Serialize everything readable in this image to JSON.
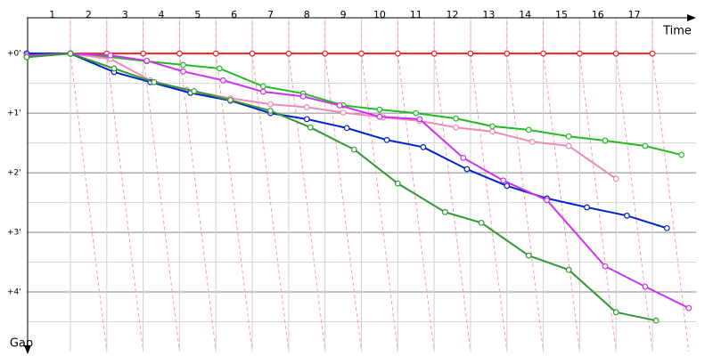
{
  "chart_data": {
    "type": "line",
    "x_label": "Time",
    "y_label": "Gap",
    "xlim": [
      -0.2,
      18.2
    ],
    "ylim": [
      -0.6,
      5.0
    ],
    "xticks": [
      {
        "value": 0.5,
        "label": "1"
      },
      {
        "value": 1.5,
        "label": "2"
      },
      {
        "value": 2.5,
        "label": "3"
      },
      {
        "value": 3.5,
        "label": "4"
      },
      {
        "value": 4.5,
        "label": "5"
      },
      {
        "value": 5.5,
        "label": "6"
      },
      {
        "value": 6.5,
        "label": "7"
      },
      {
        "value": 7.5,
        "label": "8"
      },
      {
        "value": 8.5,
        "label": "9"
      },
      {
        "value": 9.5,
        "label": "10"
      },
      {
        "value": 10.5,
        "label": "11"
      },
      {
        "value": 11.5,
        "label": "12"
      },
      {
        "value": 12.5,
        "label": "13"
      },
      {
        "value": 13.5,
        "label": "14"
      },
      {
        "value": 14.5,
        "label": "15"
      },
      {
        "value": 15.5,
        "label": "16"
      },
      {
        "value": 16.5,
        "label": "17"
      }
    ],
    "yticks": [
      {
        "value": 0,
        "label": "+0'"
      },
      {
        "value": 1,
        "label": "+1'"
      },
      {
        "value": 2,
        "label": "+2'"
      },
      {
        "value": 3,
        "label": "+3'"
      },
      {
        "value": 4,
        "label": "+4'"
      }
    ],
    "grid": true,
    "series": [
      {
        "color": "#ee2222",
        "x": [
          -0.2,
          1,
          2,
          3,
          4,
          5,
          6,
          7,
          8,
          9,
          10,
          11,
          12,
          13,
          14,
          15,
          16,
          17
        ],
        "values": [
          0,
          0,
          0,
          0,
          0,
          0,
          0,
          0,
          0,
          0,
          0,
          0,
          0,
          0,
          0,
          0,
          0,
          0
        ]
      },
      {
        "color": "#22bb22",
        "x": [
          -0.2,
          1,
          2.1,
          3.1,
          4.1,
          5.1,
          6.3,
          7.4,
          8.5,
          9.5,
          10.5,
          11.6,
          12.6,
          13.6,
          14.7,
          15.7,
          16.8,
          17.8
        ],
        "values": [
          0.06,
          0,
          0.06,
          0.13,
          0.19,
          0.25,
          0.55,
          0.67,
          0.87,
          0.94,
          1.0,
          1.09,
          1.22,
          1.28,
          1.39,
          1.46,
          1.55,
          1.7
        ]
      },
      {
        "color": "#f088b8",
        "x": [
          -0.2,
          1,
          2.1,
          3.2,
          4.2,
          5.4,
          6.5,
          7.5,
          8.5,
          9.6,
          10.6,
          11.6,
          12.6,
          13.7,
          14.7,
          16.0
        ],
        "values": [
          0.01,
          0,
          0.09,
          0.45,
          0.61,
          0.75,
          0.85,
          0.9,
          0.99,
          1.07,
          1.13,
          1.24,
          1.31,
          1.48,
          1.55,
          2.1
        ]
      },
      {
        "color": "#0022cc",
        "x": [
          -0.2,
          1,
          2.2,
          3.2,
          4.3,
          5.4,
          6.5,
          7.5,
          8.6,
          9.7,
          10.7,
          11.9,
          13.0,
          14.1,
          15.2,
          16.3,
          17.4
        ],
        "values": [
          0,
          0,
          0.31,
          0.48,
          0.66,
          0.79,
          1.0,
          1.1,
          1.25,
          1.45,
          1.57,
          1.94,
          2.22,
          2.43,
          2.58,
          2.72,
          2.93
        ]
      },
      {
        "color": "#cc33ee",
        "x": [
          -0.2,
          1,
          2.1,
          3.1,
          4.1,
          5.2,
          6.3,
          7.4,
          8.4,
          9.5,
          10.6,
          11.8,
          12.9,
          14.1,
          15.7,
          16.8,
          18.0
        ],
        "values": [
          0.03,
          0,
          0.03,
          0.12,
          0.3,
          0.45,
          0.64,
          0.72,
          0.87,
          1.06,
          1.1,
          1.75,
          2.13,
          2.46,
          3.57,
          3.91,
          4.27
        ]
      },
      {
        "color": "#339933",
        "x": [
          -0.2,
          1,
          2.2,
          3.3,
          4.4,
          5.4,
          6.5,
          7.6,
          8.8,
          10.0,
          11.3,
          12.3,
          13.6,
          14.7,
          16.0,
          17.1
        ],
        "values": [
          0.06,
          0,
          0.25,
          0.48,
          0.63,
          0.78,
          0.96,
          1.24,
          1.61,
          2.18,
          2.66,
          2.84,
          3.39,
          3.63,
          4.34,
          4.48
        ]
      }
    ]
  }
}
